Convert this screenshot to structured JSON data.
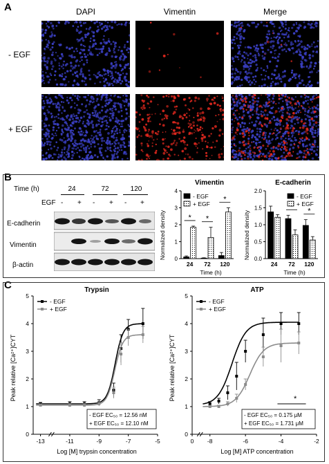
{
  "panels": {
    "a": "A",
    "b": "B",
    "c": "C"
  },
  "panel_a": {
    "columns": [
      "DAPI",
      "Vimentin",
      "Merge"
    ],
    "rows": [
      "- EGF",
      "+ EGF"
    ],
    "colors": {
      "dapi": "#3a3fc2",
      "vimentin": "#e0281e",
      "background": "#000000"
    }
  },
  "blot": {
    "time_label": "Time (h)",
    "egf_label": "EGF",
    "times": [
      "24",
      "72",
      "120"
    ],
    "signs": [
      "-",
      "+",
      "-",
      "+",
      "-",
      "+"
    ],
    "bands": [
      "E-cadherin",
      "Vimentin",
      "β-actin"
    ]
  },
  "chart_data": [
    {
      "type": "bar",
      "title": "Vimentin",
      "xlabel": "Time (h)",
      "ylabel": "Normalized density",
      "categories": [
        "24",
        "72",
        "120"
      ],
      "ylim": [
        0,
        4
      ],
      "yticks": [
        "0",
        "1",
        "2",
        "3",
        "4"
      ],
      "series": [
        {
          "name": "- EGF",
          "values": [
            0.1,
            0.03,
            0.18
          ],
          "errors": [
            0.06,
            0.02,
            0.18
          ]
        },
        {
          "name": "+ EGF",
          "values": [
            1.85,
            1.25,
            2.75
          ],
          "errors": [
            0.07,
            0.6,
            0.25
          ]
        }
      ],
      "significance": [
        "*",
        "*",
        "*"
      ],
      "legend_position": "top-left"
    },
    {
      "type": "bar",
      "title": "E-cadherin",
      "xlabel": "Time (h)",
      "ylabel": "Normalized density",
      "categories": [
        "24",
        "72",
        "120"
      ],
      "ylim": [
        0,
        2
      ],
      "yticks": [
        "0.0",
        "0.5",
        "1.0",
        "1.5",
        "2.0"
      ],
      "series": [
        {
          "name": "- EGF",
          "values": [
            1.38,
            1.18,
            0.98
          ],
          "errors": [
            0.17,
            0.1,
            0.17
          ]
        },
        {
          "name": "+ EGF",
          "values": [
            1.22,
            0.7,
            0.55
          ],
          "errors": [
            0.08,
            0.15,
            0.1
          ]
        }
      ],
      "significance": [
        "",
        "*",
        "*"
      ],
      "legend_position": "top-right"
    },
    {
      "type": "line",
      "title": "Trypsin",
      "xlabel": "Log [M] trypsin concentration",
      "ylabel": "Peak relative [Ca²⁺]CYT",
      "xlim": [
        -13.5,
        -5
      ],
      "ylim": [
        0,
        5
      ],
      "xticks": [
        "-13",
        "-11",
        "-9",
        "-7",
        "-5"
      ],
      "yticks": [
        "0",
        "1",
        "2",
        "3",
        "4",
        "5"
      ],
      "series": [
        {
          "name": "- EGF",
          "x": [
            -13,
            -11,
            -10,
            -9,
            -8,
            -7.5,
            -7,
            -6
          ],
          "y": [
            1.1,
            1.1,
            1.1,
            1.15,
            1.6,
            3.1,
            3.8,
            4.0
          ],
          "errors": [
            0.05,
            0.08,
            0.08,
            0.1,
            0.25,
            0.5,
            0.35,
            0.55
          ]
        },
        {
          "name": "+ EGF",
          "x": [
            -13,
            -11,
            -10,
            -9,
            -8,
            -7.5,
            -7,
            -6
          ],
          "y": [
            1.05,
            1.05,
            1.05,
            1.1,
            1.5,
            2.9,
            3.5,
            3.6
          ],
          "errors": [
            0.05,
            0.06,
            0.06,
            0.08,
            0.2,
            0.4,
            0.3,
            0.3
          ]
        }
      ],
      "ec50": {
        "minus": "- EGF EC₅₀ = 12.56 nM",
        "plus": "+ EGF EC₅₀ = 12.10 nM"
      },
      "legend_position": "top-left"
    },
    {
      "type": "line",
      "title": "ATP",
      "xlabel": "Log [M] ATP concentration",
      "ylabel": "Peak relative [Ca²⁺]CYT",
      "xlim": [
        -9,
        -2
      ],
      "ylim": [
        0,
        5
      ],
      "xticks": [
        "0",
        "-8",
        "-6",
        "-4",
        "-2"
      ],
      "yticks": [
        "0",
        "1",
        "2",
        "3",
        "4",
        "5"
      ],
      "series": [
        {
          "name": "- EGF",
          "x": [
            -8,
            -7.5,
            -7,
            -6.5,
            -6,
            -5,
            -4,
            -3
          ],
          "y": [
            1.1,
            1.2,
            1.5,
            2.1,
            3.0,
            3.6,
            4.0,
            4.0
          ],
          "errors": [
            0.08,
            0.1,
            0.25,
            0.5,
            0.4,
            0.6,
            0.4,
            0.4
          ]
        },
        {
          "name": "+ EGF",
          "x": [
            -8,
            -7.5,
            -7,
            -6.5,
            -6,
            -5,
            -4,
            -3
          ],
          "y": [
            1.0,
            1.0,
            1.1,
            1.3,
            1.8,
            2.8,
            3.2,
            3.3
          ],
          "errors": [
            0.05,
            0.05,
            0.08,
            0.15,
            0.2,
            0.35,
            0.6,
            0.4
          ]
        }
      ],
      "ec50": {
        "minus": "- EGF EC₅₀ = 0.175 μM",
        "plus": "+ EGF EC₅₀ = 1.731 μM"
      },
      "significance": "*",
      "legend_position": "top-left"
    }
  ]
}
